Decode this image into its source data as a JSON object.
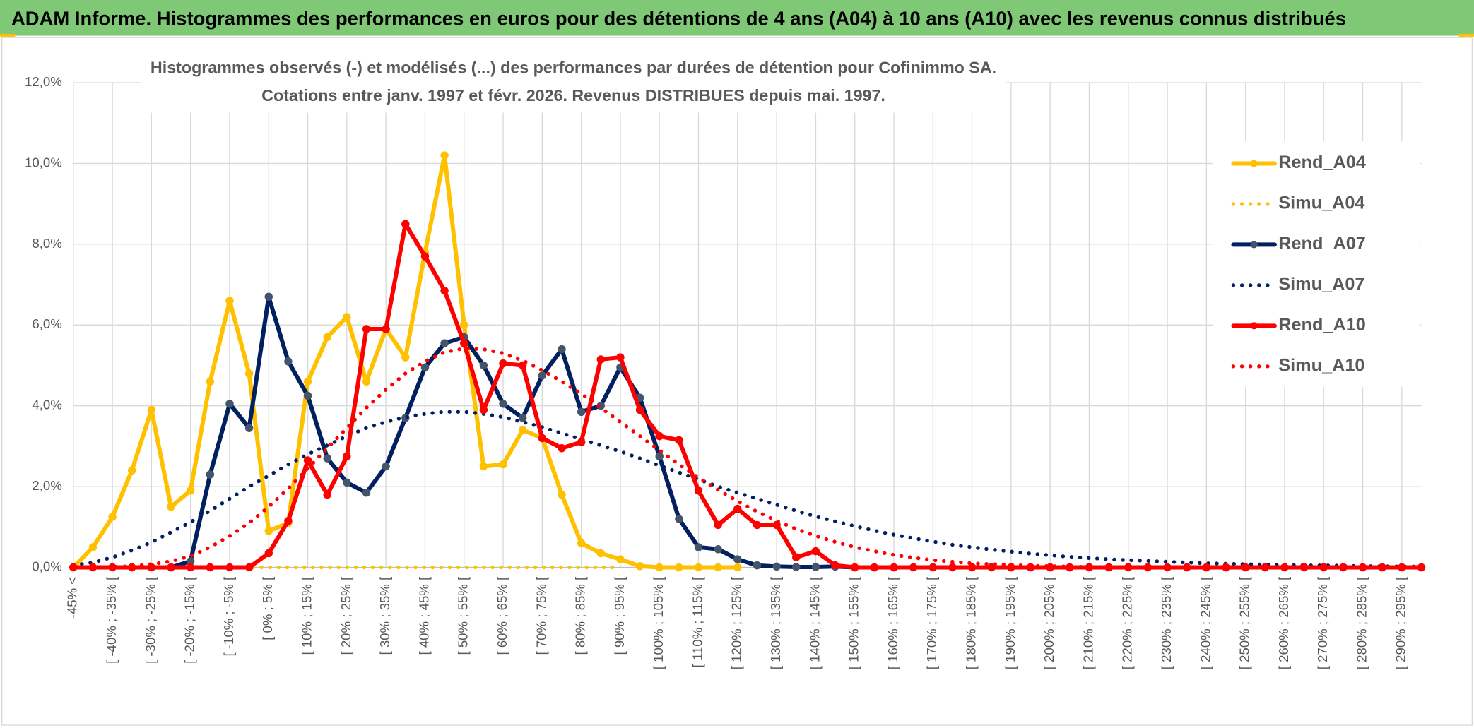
{
  "header": {
    "title": "ADAM Informe. Histogrammes des performances en euros pour des détentions de 4 ans (A04) à 10 ans (A10) avec les revenus connus distribués"
  },
  "chart_data": {
    "type": "line",
    "title": "Histogrammes observés (-) et modélisés (...) des performances par durées de détention pour Cofinimmo SA.",
    "subtitle": "Cotations entre janv. 1997 et févr. 2026. Revenus DISTRIBUES depuis mai. 1997.",
    "categories": [
      "-45% <",
      null,
      "[ -40% ; -35% [",
      null,
      "[ -30% ; -25% [",
      null,
      "[ -20% ; -15% [",
      null,
      "[ -10% ; -5% [",
      null,
      "[ 0% ; 5% [",
      null,
      "[ 10% ; 15% [",
      null,
      "[ 20% ; 25% [",
      null,
      "[ 30% ; 35% [",
      null,
      "[ 40% ; 45% [",
      null,
      "[ 50% ; 55% [",
      null,
      "[ 60% ; 65% [",
      null,
      "[ 70% ; 75% [",
      null,
      "[ 80% ; 85% [",
      null,
      "[ 90% ; 95% [",
      null,
      "[ 100% ; 105% [",
      null,
      "[ 110% ; 115% [",
      null,
      "[ 120% ; 125% [",
      null,
      "[ 130% ; 135% [",
      null,
      "[ 140% ; 145% [",
      null,
      "[ 150% ; 155% [",
      null,
      "[ 160% ; 165% [",
      null,
      "[ 170% ; 175% [",
      null,
      "[ 180% ; 185% [",
      null,
      "[ 190% ; 195% [",
      null,
      "[ 200% ; 205% [",
      null,
      "[ 210% ; 215% [",
      null,
      "[ 220% ; 225% [",
      null,
      "[ 230% ; 235% [",
      null,
      "[ 240% ; 245% [",
      null,
      "[ 250% ; 255% [",
      null,
      "[ 260% ; 265% [",
      null,
      "[ 270% ; 275% [",
      null,
      "[ 280% ; 285% [",
      null,
      "[ 290% ; 295% [",
      null
    ],
    "ylim": [
      0,
      12
    ],
    "yticks": [
      {
        "value": 0,
        "label": "0,0%"
      },
      {
        "value": 2,
        "label": "2,0%"
      },
      {
        "value": 4,
        "label": "4,0%"
      },
      {
        "value": 6,
        "label": "6,0%"
      },
      {
        "value": 8,
        "label": "8,0%"
      },
      {
        "value": 10,
        "label": "10,0%"
      },
      {
        "value": 12,
        "label": "12,0%"
      }
    ],
    "grid": true,
    "legend": "right",
    "series": [
      {
        "name": "Rend_A04",
        "color": "#ffc000",
        "marker_color": "#ffc000",
        "line_style": "solid",
        "markers": true,
        "values": [
          0,
          0.5,
          1.25,
          2.4,
          3.9,
          1.5,
          1.9,
          4.6,
          6.6,
          4.8,
          0.9,
          1.1,
          4.6,
          5.7,
          6.2,
          4.6,
          5.9,
          5.2,
          7.8,
          10.2,
          6.0,
          2.5,
          2.55,
          3.4,
          3.2,
          1.8,
          0.6,
          0.35,
          0.2,
          0.03,
          0,
          0,
          0,
          0,
          0,
          null,
          null,
          null,
          null,
          null,
          null,
          null,
          null,
          null,
          null,
          null,
          null,
          null,
          null,
          null,
          null,
          null,
          null,
          null,
          null,
          null,
          null,
          null,
          null,
          null,
          null,
          null,
          null,
          null,
          null,
          null,
          null,
          null,
          null,
          null
        ]
      },
      {
        "name": "Simu_A04",
        "color": "#ffc000",
        "line_style": "dotted",
        "markers": false,
        "values": [
          0,
          0,
          0,
          0,
          0,
          0,
          0,
          0,
          0,
          0,
          0,
          0,
          0,
          0,
          0,
          0,
          0,
          0,
          0,
          0,
          0,
          0,
          0,
          0,
          0,
          0,
          0,
          0,
          0,
          null,
          null,
          null,
          null,
          null,
          null,
          null,
          null,
          null,
          null,
          null,
          null,
          null,
          null,
          null,
          null,
          null,
          null,
          null,
          null,
          null,
          null,
          null,
          null,
          null,
          null,
          null,
          null,
          null,
          null,
          null,
          null,
          null,
          null,
          null,
          null,
          null,
          null,
          null,
          null,
          null
        ]
      },
      {
        "name": "Rend_A07",
        "color": "#002060",
        "marker_color": "#44546a",
        "line_style": "solid",
        "markers": true,
        "values": [
          0,
          0,
          0,
          0,
          0,
          0,
          0.15,
          2.3,
          4.05,
          3.45,
          6.7,
          5.1,
          4.25,
          2.7,
          2.1,
          1.85,
          2.5,
          3.7,
          4.95,
          5.55,
          5.7,
          5.0,
          4.05,
          3.7,
          4.75,
          5.4,
          3.85,
          4.0,
          4.95,
          4.2,
          2.75,
          1.2,
          0.5,
          0.45,
          0.2,
          0.05,
          0.02,
          0.01,
          0.01,
          0.02,
          0,
          0,
          0,
          0,
          0,
          0,
          0,
          0,
          0,
          0,
          0,
          0,
          0,
          0,
          0,
          0,
          0,
          0,
          0,
          0,
          0,
          0,
          0,
          0,
          0,
          0,
          0,
          0,
          0,
          0
        ]
      },
      {
        "name": "Simu_A07",
        "color": "#002060",
        "line_style": "dotted",
        "markers": false,
        "values": [
          0.05,
          0.12,
          0.25,
          0.42,
          0.62,
          0.87,
          1.12,
          1.4,
          1.7,
          2.0,
          2.27,
          2.55,
          2.8,
          3.02,
          3.25,
          3.45,
          3.6,
          3.72,
          3.8,
          3.85,
          3.85,
          3.8,
          3.72,
          3.6,
          3.47,
          3.32,
          3.17,
          3.02,
          2.87,
          2.7,
          2.52,
          2.35,
          2.18,
          2.0,
          1.85,
          1.7,
          1.55,
          1.4,
          1.26,
          1.14,
          1.02,
          0.91,
          0.81,
          0.72,
          0.64,
          0.56,
          0.5,
          0.44,
          0.39,
          0.34,
          0.3,
          0.26,
          0.23,
          0.2,
          0.18,
          0.16,
          0.14,
          0.12,
          0.1,
          0.09,
          0.08,
          0.07,
          0.06,
          0.05,
          0.05,
          0.04,
          0.03,
          0.03,
          0.02,
          0.02
        ]
      },
      {
        "name": "Rend_A10",
        "color": "#ff0000",
        "marker_color": "#ff0000",
        "line_style": "solid",
        "markers": true,
        "values": [
          0,
          0,
          0,
          0,
          0,
          0,
          0,
          0,
          0,
          0,
          0.35,
          1.15,
          2.65,
          1.8,
          2.75,
          5.9,
          5.9,
          8.5,
          7.7,
          6.85,
          5.55,
          3.9,
          5.05,
          5.0,
          3.2,
          2.95,
          3.1,
          5.15,
          5.2,
          3.9,
          3.25,
          3.15,
          1.9,
          1.05,
          1.45,
          1.05,
          1.05,
          0.25,
          0.4,
          0.05,
          0,
          0,
          0,
          0,
          0,
          0,
          0,
          0,
          0,
          0,
          0,
          0,
          0,
          0,
          0,
          0,
          0,
          0,
          0,
          0,
          0,
          0,
          0,
          0,
          0,
          0,
          0,
          0,
          0,
          0
        ]
      },
      {
        "name": "Simu_A10",
        "color": "#ff0000",
        "line_style": "dotted",
        "markers": false,
        "values": [
          0,
          0,
          0.01,
          0.03,
          0.08,
          0.15,
          0.28,
          0.5,
          0.78,
          1.1,
          1.5,
          1.95,
          2.45,
          2.95,
          3.45,
          3.95,
          4.4,
          4.8,
          5.1,
          5.33,
          5.42,
          5.4,
          5.3,
          5.12,
          4.88,
          4.6,
          4.3,
          3.95,
          3.6,
          3.25,
          2.9,
          2.55,
          2.22,
          1.92,
          1.64,
          1.38,
          1.15,
          0.95,
          0.78,
          0.63,
          0.5,
          0.4,
          0.31,
          0.24,
          0.18,
          0.14,
          0.1,
          0.08,
          0.06,
          0.04,
          0.03,
          0.02,
          0.01,
          0,
          0,
          0,
          0,
          0,
          0,
          0,
          0,
          0,
          0,
          0,
          0,
          0,
          0,
          0,
          0,
          0
        ]
      }
    ]
  }
}
